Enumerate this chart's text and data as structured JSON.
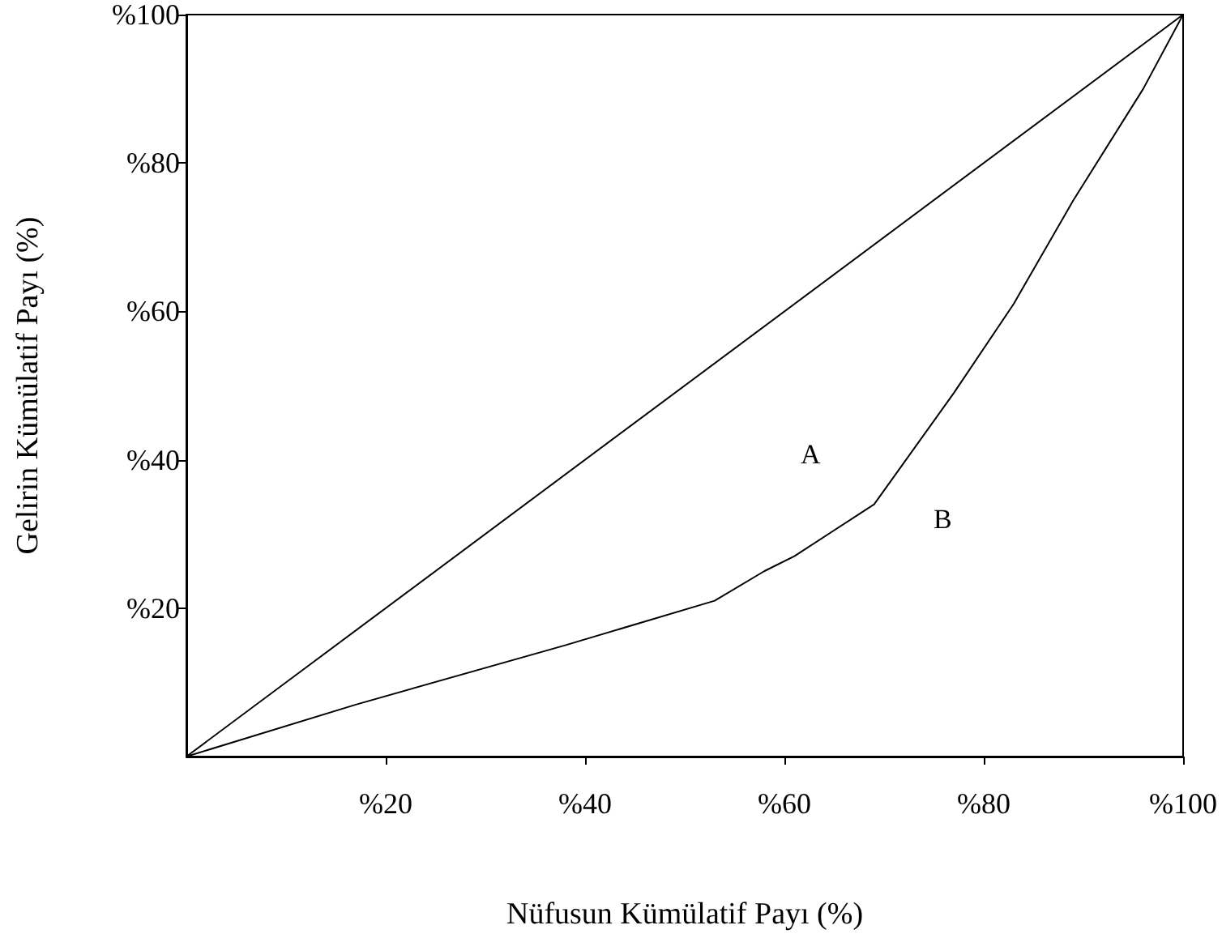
{
  "chart_data": {
    "type": "line",
    "xlabel": "Nüfusun Kümülatif Payı (%)",
    "ylabel": "Gelirin Kümülatif Payı (%)",
    "xlim": [
      0,
      100
    ],
    "ylim": [
      0,
      100
    ],
    "xticks": [
      {
        "value": 20,
        "label": "%20"
      },
      {
        "value": 40,
        "label": "%40"
      },
      {
        "value": 60,
        "label": "%60"
      },
      {
        "value": 80,
        "label": "%80"
      },
      {
        "value": 100,
        "label": "%100"
      }
    ],
    "yticks": [
      {
        "value": 20,
        "label": "%20"
      },
      {
        "value": 40,
        "label": "%40"
      },
      {
        "value": 60,
        "label": "%60"
      },
      {
        "value": 80,
        "label": "%80"
      },
      {
        "value": 100,
        "label": "%100"
      }
    ],
    "series": [
      {
        "color": "#000000",
        "x": [
          0,
          100
        ],
        "values": [
          0,
          100
        ]
      },
      {
        "color": "#000000",
        "x": [
          0,
          17,
          38,
          53,
          58,
          61,
          69,
          77,
          83,
          89,
          96,
          100
        ],
        "values": [
          0,
          7,
          15,
          21,
          25,
          27,
          34,
          49,
          61,
          75,
          90,
          100
        ]
      }
    ],
    "annotations": [
      "A",
      "B"
    ],
    "grid": false,
    "marker": "none",
    "line_style": "solid"
  }
}
